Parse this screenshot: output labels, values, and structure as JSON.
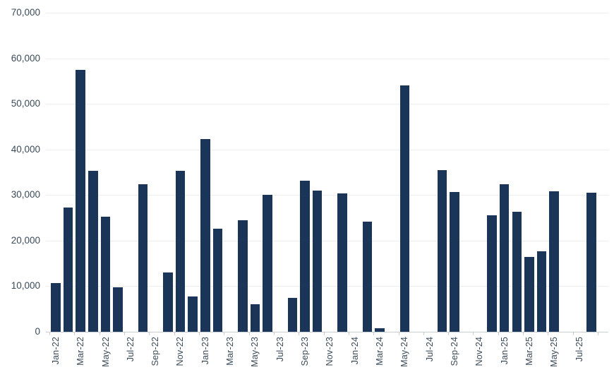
{
  "chart_data": {
    "type": "bar",
    "title": "",
    "xlabel": "",
    "ylabel": "",
    "legend": "none",
    "grid": "horizontal",
    "ylim": [
      0,
      70000
    ],
    "ytick_step": 10000,
    "ytick_labels": [
      "0",
      "10,000",
      "20,000",
      "30,000",
      "40,000",
      "50,000",
      "60,000",
      "70,000"
    ],
    "xtick_label_every": 2,
    "x": [
      "Jan-22",
      "Feb-22",
      "Mar-22",
      "Apr-22",
      "May-22",
      "Jun-22",
      "Jul-22",
      "Aug-22",
      "Sep-22",
      "Oct-22",
      "Nov-22",
      "Dec-22",
      "Jan-23",
      "Feb-23",
      "Mar-23",
      "Apr-23",
      "May-23",
      "Jun-23",
      "Jul-23",
      "Aug-23",
      "Sep-23",
      "Oct-23",
      "Nov-23",
      "Dec-23",
      "Jan-24",
      "Feb-24",
      "Mar-24",
      "Apr-24",
      "May-24",
      "Jun-24",
      "Jul-24",
      "Aug-24",
      "Sep-24",
      "Oct-24",
      "Nov-24",
      "Dec-24",
      "Jan-25",
      "Feb-25",
      "Mar-25",
      "Apr-25",
      "May-25",
      "Jun-25",
      "Jul-25",
      "Aug-25"
    ],
    "values": [
      10700,
      27300,
      57500,
      35300,
      25200,
      9800,
      null,
      32300,
      null,
      13000,
      35300,
      7800,
      42300,
      22600,
      null,
      24400,
      6000,
      30100,
      null,
      7400,
      33200,
      31000,
      null,
      30300,
      null,
      24100,
      800,
      null,
      54000,
      null,
      null,
      35500,
      30700,
      null,
      null,
      25500,
      32400,
      26400,
      16400,
      17600,
      30800,
      null,
      null,
      30500
    ],
    "visible_xtick_labels": [
      "Jan-22",
      "Mar-22",
      "May-22",
      "Jul-22",
      "Sep-22",
      "Nov-22",
      "Jan-23",
      "Mar-23",
      "May-23",
      "Jul-23",
      "Sep-23",
      "Nov-23",
      "Jan-24",
      "Mar-24",
      "May-24",
      "Jul-24",
      "Sep-24",
      "Nov-24",
      "Jan-25",
      "Mar-25",
      "May-25",
      "Jul-25"
    ]
  },
  "colors": {
    "bar": "#1b3559",
    "axis_text": "#3b4a59",
    "gridline": "#ecedef",
    "axis_line": "#c9ced4",
    "background": "#ffffff"
  }
}
